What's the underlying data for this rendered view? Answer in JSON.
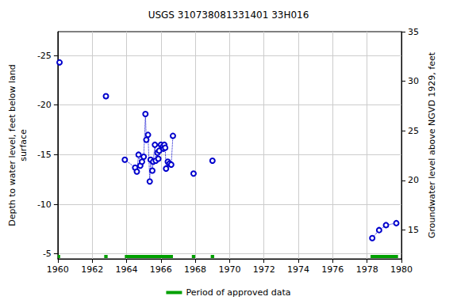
{
  "chart_data": {
    "type": "line",
    "title": "USGS 310738081331401 33H016",
    "x_label": "",
    "y_label": "Depth to water level, feet below land\nsurface",
    "y2_label": "Groundwater level above NGVD 1929, feet",
    "x": [
      1960.1,
      null,
      1962.8,
      null,
      1963.9,
      1964.5,
      1964.6,
      1964.7,
      1964.8,
      1964.9,
      1965.0,
      1965.1,
      1965.15,
      1965.25,
      1965.35,
      1965.4,
      1965.5,
      1965.55,
      1965.65,
      1965.7,
      1965.8,
      1965.85,
      1965.9,
      1966.0,
      1966.1,
      1966.15,
      1966.2,
      1966.25,
      1966.3,
      1966.4,
      1966.5,
      1966.6,
      1966.7,
      null,
      1967.9,
      null,
      1969.0,
      null,
      1978.3,
      1978.7,
      1979.1,
      1979.7
    ],
    "values": [
      -24.3,
      null,
      -20.9,
      null,
      -14.5,
      -13.7,
      -13.3,
      -15.0,
      -13.9,
      -14.3,
      -14.8,
      -19.1,
      -16.5,
      -17.0,
      -12.3,
      -14.5,
      -13.4,
      -14.3,
      -16.0,
      -14.4,
      -15.2,
      -14.6,
      -15.4,
      -16.0,
      -15.8,
      -15.6,
      -16.0,
      -15.7,
      -13.6,
      -14.3,
      -14.1,
      -14.0,
      -16.9,
      null,
      -13.1,
      null,
      -14.4,
      null,
      -6.6,
      -7.4,
      -7.9,
      -8.1
    ],
    "color": "#0000cc",
    "marker": "open_circle",
    "line_style": "dotted",
    "xlim": [
      1960,
      1980
    ],
    "xticks": [
      1960,
      1962,
      1964,
      1966,
      1968,
      1970,
      1972,
      1974,
      1976,
      1978,
      1980
    ],
    "ylim": [
      -27.4,
      -4.5
    ],
    "yticks": [
      -25,
      -20,
      -15,
      -10,
      -5
    ],
    "y2lim": [
      12.1,
      35
    ],
    "y2ticks": [
      15,
      20,
      25,
      30,
      35
    ],
    "grid": true,
    "legend": "bottom",
    "approved": {
      "name": "Period of approved data",
      "color": "#00a000",
      "periods": [
        [
          1960.0,
          1960.1
        ],
        [
          1962.7,
          1962.9
        ],
        [
          1963.9,
          1966.7
        ],
        [
          1967.8,
          1968.0
        ],
        [
          1968.9,
          1969.1
        ],
        [
          1978.2,
          1979.8
        ]
      ]
    }
  }
}
